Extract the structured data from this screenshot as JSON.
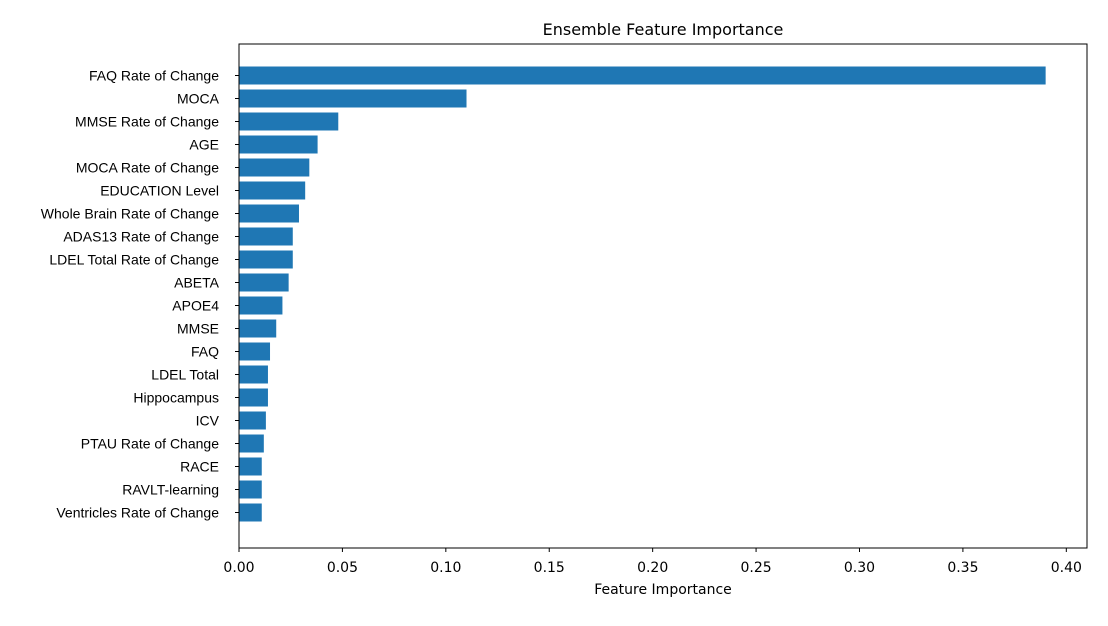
{
  "chart_data": {
    "type": "bar",
    "orientation": "horizontal",
    "title": "Ensemble Feature Importance",
    "xlabel": "Feature Importance",
    "ylabel": "",
    "xlim": [
      0.0,
      0.41
    ],
    "xticks": [
      "0.00",
      "0.05",
      "0.10",
      "0.15",
      "0.20",
      "0.25",
      "0.30",
      "0.35",
      "0.40"
    ],
    "grid": false,
    "bar_color": "#1f77b4",
    "categories": [
      "FAQ Rate of Change",
      "MOCA",
      "MMSE Rate of Change",
      "AGE",
      "MOCA Rate of Change",
      "EDUCATION Level",
      "Whole Brain Rate of Change",
      "ADAS13 Rate of Change",
      "LDEL Total Rate of Change",
      "ABETA",
      "APOE4",
      "MMSE",
      "FAQ",
      "LDEL Total",
      "Hippocampus",
      "ICV",
      "PTAU Rate of Change",
      "RACE",
      "RAVLT-learning",
      "Ventricles Rate of Change"
    ],
    "values": [
      0.39,
      0.11,
      0.048,
      0.038,
      0.034,
      0.032,
      0.029,
      0.026,
      0.026,
      0.024,
      0.021,
      0.018,
      0.015,
      0.014,
      0.014,
      0.013,
      0.012,
      0.011,
      0.011,
      0.011
    ]
  }
}
